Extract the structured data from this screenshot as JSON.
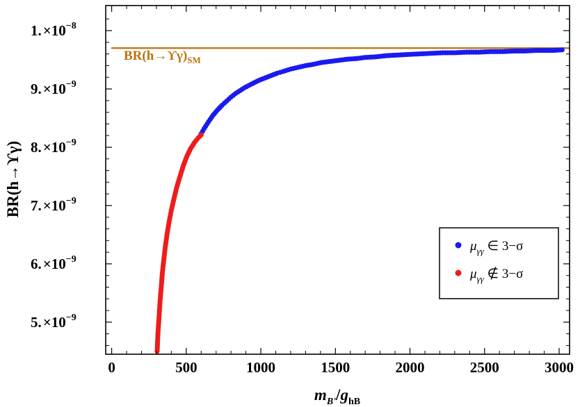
{
  "chart_data": {
    "type": "scatter",
    "title": "",
    "xlabel_main": "m",
    "xlabel_main_sub": "B'",
    "xlabel_sep": "/",
    "xlabel_second": "g",
    "xlabel_second_sub": "hB",
    "ylabel": "BR(h→ϒγ)",
    "xlim": [
      -40,
      3070
    ],
    "ylim": [
      4.45e-09,
      1.043e-08
    ],
    "x_ticks": [
      0,
      500,
      1000,
      1500,
      2000,
      2500,
      3000
    ],
    "x_tick_labels": [
      "0",
      "500",
      "1000",
      "1500",
      "2000",
      "2500",
      "3000"
    ],
    "y_ticks": [
      {
        "value": 5e-09,
        "mantissa": "5.",
        "base": "×10",
        "exp": "−9"
      },
      {
        "value": 6e-09,
        "mantissa": "6.",
        "base": "×10",
        "exp": "−9"
      },
      {
        "value": 7e-09,
        "mantissa": "7.",
        "base": "×10",
        "exp": "−9"
      },
      {
        "value": 8e-09,
        "mantissa": "8.",
        "base": "×10",
        "exp": "−9"
      },
      {
        "value": 9e-09,
        "mantissa": "9.",
        "base": "×10",
        "exp": "−9"
      },
      {
        "value": 1e-08,
        "mantissa": "1.",
        "base": "×10",
        "exp": "−8"
      }
    ],
    "reference_line": {
      "label_main": "BR(h→ϒγ)",
      "label_sub": "SM",
      "y": 9.7e-09,
      "color": "#b8730f"
    },
    "series": [
      {
        "name": "μγγ ∈ 3−σ",
        "legend_main": "μ",
        "legend_sub": "γγ",
        "legend_rel": " ∈ 3−σ",
        "color": "#1a1aef",
        "x": [
          600,
          620,
          650,
          680,
          710,
          740,
          770,
          800,
          830,
          860,
          890,
          920,
          950,
          990,
          1030,
          1070,
          1110,
          1150,
          1200,
          1250,
          1300,
          1350,
          1400,
          1460,
          1520,
          1580,
          1640,
          1700,
          1770,
          1840,
          1910,
          1980,
          2060,
          2140,
          2220,
          2300,
          2380,
          2460,
          2540,
          2620,
          2700,
          2770,
          2840,
          2900,
          2960,
          3020
        ],
        "y": [
          8.23e-09,
          8.32e-09,
          8.44e-09,
          8.55e-09,
          8.64e-09,
          8.72e-09,
          8.79e-09,
          8.86e-09,
          8.92e-09,
          8.97e-09,
          9.02e-09,
          9.06e-09,
          9.1e-09,
          9.15e-09,
          9.19e-09,
          9.23e-09,
          9.27e-09,
          9.3e-09,
          9.34e-09,
          9.37e-09,
          9.4e-09,
          9.42e-09,
          9.45e-09,
          9.47e-09,
          9.49e-09,
          9.51e-09,
          9.52e-09,
          9.54e-09,
          9.55e-09,
          9.57e-09,
          9.58e-09,
          9.59e-09,
          9.6e-09,
          9.61e-09,
          9.62e-09,
          9.62e-09,
          9.63e-09,
          9.63e-09,
          9.64e-09,
          9.64e-09,
          9.65e-09,
          9.65e-09,
          9.66e-09,
          9.66e-09,
          9.66e-09,
          9.67e-09
        ]
      },
      {
        "name": "μγγ ∉ 3−σ",
        "legend_main": "μ",
        "legend_sub": "γγ",
        "legend_rel": " ∉ 3−σ",
        "color": "#ee1c1c",
        "x": [
          305,
          310,
          318,
          325,
          333,
          340,
          350,
          360,
          372,
          385,
          400,
          418,
          437,
          458,
          480,
          505,
          530,
          555,
          580,
          600
        ],
        "y": [
          4.5e-09,
          4.8e-09,
          5.1e-09,
          5.38e-09,
          5.62e-09,
          5.85e-09,
          6.08e-09,
          6.3e-09,
          6.52e-09,
          6.72e-09,
          6.92e-09,
          7.12e-09,
          7.32e-09,
          7.5e-09,
          7.68e-09,
          7.85e-09,
          7.98e-09,
          8.08e-09,
          8.16e-09,
          8.21e-09
        ]
      }
    ],
    "legend_position": "lower-right",
    "grid": false
  }
}
